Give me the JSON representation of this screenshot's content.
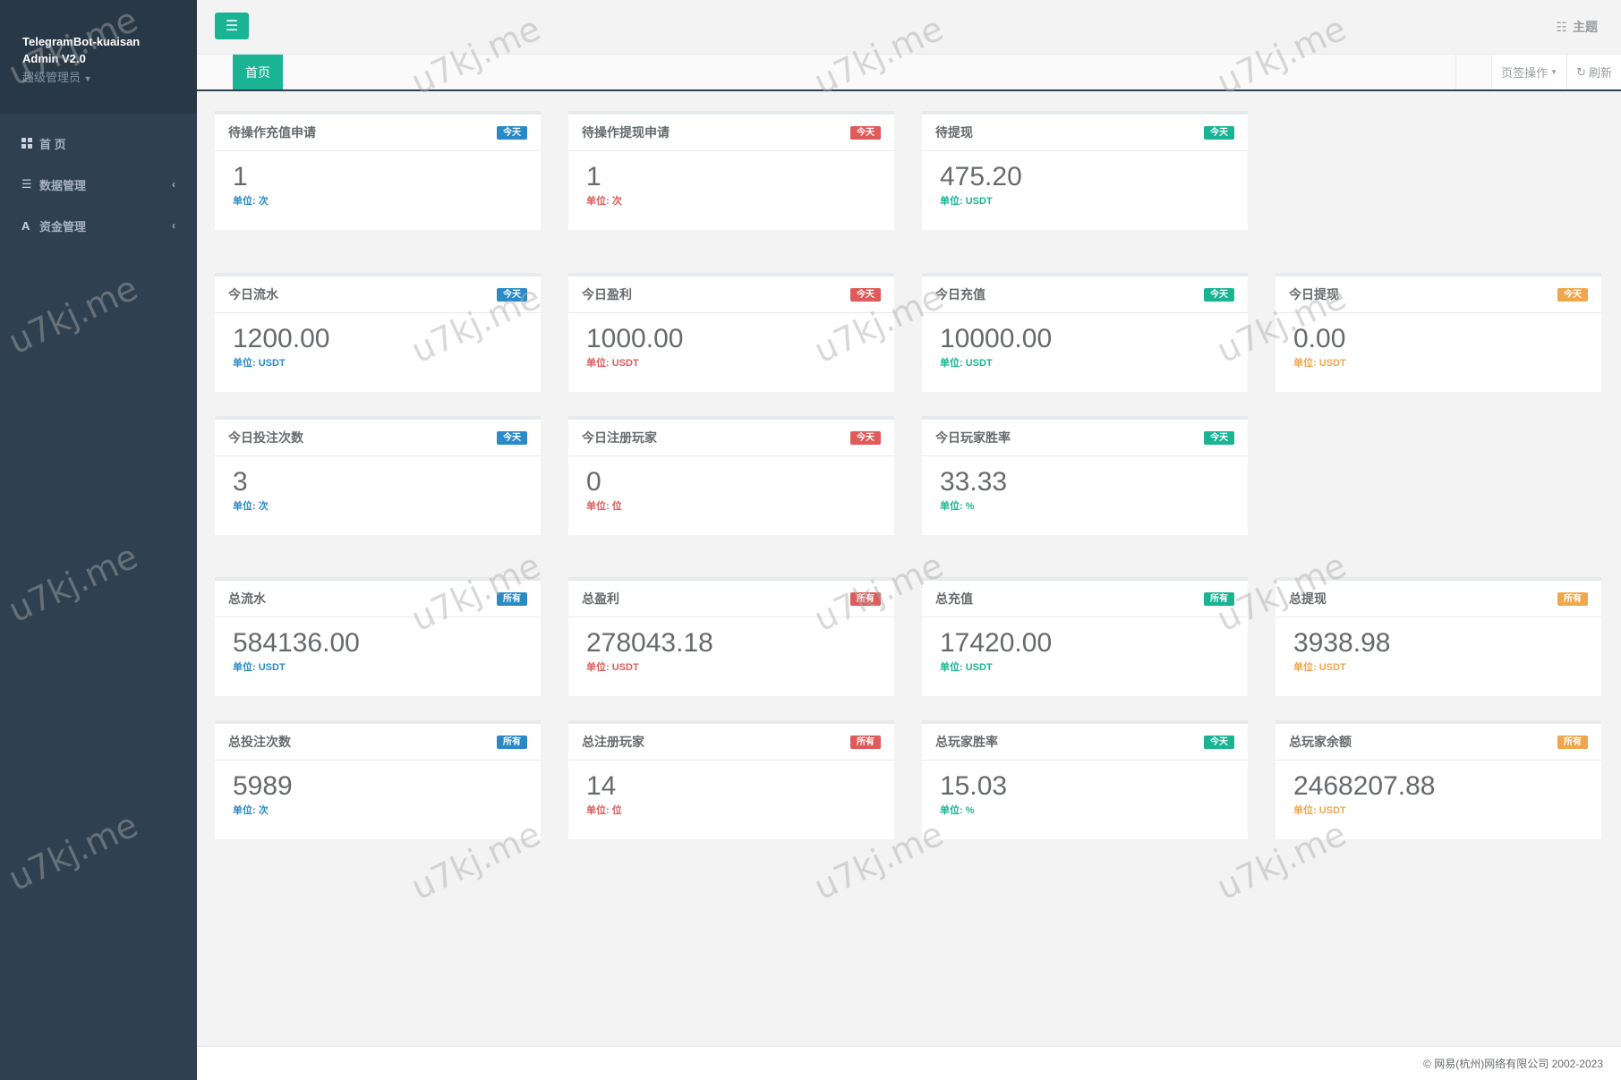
{
  "sidebar": {
    "brand": "TelegramBot-kuaisan Admin V2.0",
    "role": "超级管理员",
    "items": [
      {
        "label": "首 页",
        "icon": "grid-icon"
      },
      {
        "label": "数据管理",
        "icon": "list-icon"
      },
      {
        "label": "资金管理",
        "icon": "font-icon"
      }
    ]
  },
  "topbar": {
    "theme_label": "主题"
  },
  "tabs": {
    "active": "首页",
    "page_ops": "页签操作",
    "refresh": "刷新"
  },
  "colors": {
    "blue": "#2a8ac6",
    "red": "#e05a5a",
    "green": "#1ab394",
    "orange": "#f0a64b",
    "sidebar": "#2f4050",
    "accent": "#1ab394"
  },
  "cards": [
    {
      "title": "待操作充值申请",
      "badge": "今天",
      "value": "1",
      "unit": "单位: 次",
      "color": "blue"
    },
    {
      "title": "待操作提现申请",
      "badge": "今天",
      "value": "1",
      "unit": "单位: 次",
      "color": "red"
    },
    {
      "title": "待提现",
      "badge": "今天",
      "value": "475.20",
      "unit": "单位: USDT",
      "color": "green"
    },
    {
      "title": "今日流水",
      "badge": "今天",
      "value": "1200.00",
      "unit": "单位: USDT",
      "color": "blue"
    },
    {
      "title": "今日盈利",
      "badge": "今天",
      "value": "1000.00",
      "unit": "单位: USDT",
      "color": "red"
    },
    {
      "title": "今日充值",
      "badge": "今天",
      "value": "10000.00",
      "unit": "单位: USDT",
      "color": "green"
    },
    {
      "title": "今日提现",
      "badge": "今天",
      "value": "0.00",
      "unit": "单位: USDT",
      "color": "orange"
    },
    {
      "title": "今日投注次数",
      "badge": "今天",
      "value": "3",
      "unit": "单位: 次",
      "color": "blue"
    },
    {
      "title": "今日注册玩家",
      "badge": "今天",
      "value": "0",
      "unit": "单位: 位",
      "color": "red"
    },
    {
      "title": "今日玩家胜率",
      "badge": "今天",
      "value": "33.33",
      "unit": "单位: %",
      "color": "green"
    },
    {
      "title": "总流水",
      "badge": "所有",
      "value": "584136.00",
      "unit": "单位: USDT",
      "color": "blue"
    },
    {
      "title": "总盈利",
      "badge": "所有",
      "value": "278043.18",
      "unit": "单位: USDT",
      "color": "red"
    },
    {
      "title": "总充值",
      "badge": "所有",
      "value": "17420.00",
      "unit": "单位: USDT",
      "color": "green"
    },
    {
      "title": "总提现",
      "badge": "所有",
      "value": "3938.98",
      "unit": "单位: USDT",
      "color": "orange"
    },
    {
      "title": "总投注次数",
      "badge": "所有",
      "value": "5989",
      "unit": "单位: 次",
      "color": "blue"
    },
    {
      "title": "总注册玩家",
      "badge": "所有",
      "value": "14",
      "unit": "单位: 位",
      "color": "red"
    },
    {
      "title": "总玩家胜率",
      "badge": "今天",
      "value": "15.03",
      "unit": "单位: %",
      "color": "green"
    },
    {
      "title": "总玩家余额",
      "badge": "所有",
      "value": "2468207.88",
      "unit": "单位: USDT",
      "color": "orange"
    }
  ],
  "footer": {
    "copyright": "© 网易(杭州)网络有限公司 2002-2023"
  },
  "watermark": "u7kj.me"
}
